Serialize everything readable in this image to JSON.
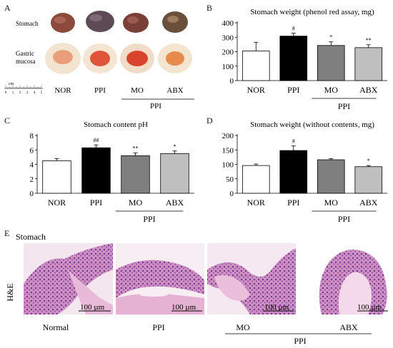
{
  "panel_letters": {
    "a": "A",
    "b": "B",
    "c": "C",
    "d": "D",
    "e": "E"
  },
  "panel_a": {
    "row_labels": [
      "Stomach",
      "Gastric\nmucosa"
    ],
    "ruler_unit": "cm",
    "ruler_ticks": [
      "0",
      "1",
      "2",
      "3",
      "4",
      "5"
    ],
    "group_labels": [
      "NOR",
      "PPI",
      "MO",
      "ABX"
    ],
    "ppi_bracket_label": "PPI"
  },
  "panel_e": {
    "title": "Stomach",
    "stain_label": "H&E",
    "scale_bar": "100 µm",
    "captions": [
      "Normal",
      "PPI",
      "MO",
      "ABX"
    ],
    "ppi_bracket_label": "PPI"
  },
  "colors": {
    "NOR": "#ffffff",
    "PPI": "#000000",
    "MO": "#7f7f7f",
    "ABX": "#bfbfbf",
    "he_pink": "#e7b5d6",
    "he_purple": "#8a4e9e"
  },
  "chart_data": [
    {
      "id": "B",
      "type": "bar",
      "title": "Stomach weight (phenol red assay, mg)",
      "categories": [
        "NOR",
        "PPI",
        "MO",
        "ABX"
      ],
      "values": [
        205,
        308,
        243,
        228
      ],
      "errors": [
        60,
        20,
        25,
        20
      ],
      "significance": [
        "",
        "#",
        "*",
        "**"
      ],
      "ylim": [
        0,
        400
      ],
      "yticks": [
        "0",
        "100",
        "200",
        "300",
        "400"
      ],
      "group_bracket": "PPI"
    },
    {
      "id": "C",
      "type": "bar",
      "title": "Stomach content pH",
      "categories": [
        "NOR",
        "PPI",
        "MO",
        "ABX"
      ],
      "values": [
        4.5,
        6.3,
        5.2,
        5.5
      ],
      "errors": [
        0.3,
        0.4,
        0.4,
        0.35
      ],
      "significance": [
        "",
        "##",
        "**",
        "*"
      ],
      "ylim": [
        0,
        8
      ],
      "yticks": [
        "0",
        "2",
        "4",
        "6",
        "8"
      ],
      "group_bracket": "PPI"
    },
    {
      "id": "D",
      "type": "bar",
      "title": "Stomach weight (without contents, mg)",
      "categories": [
        "NOR",
        "PPI",
        "MO",
        "ABX"
      ],
      "values": [
        96,
        148,
        116,
        92
      ],
      "errors": [
        5,
        16,
        4,
        4
      ],
      "significance": [
        "",
        "#",
        "",
        "*"
      ],
      "ylim": [
        0,
        200
      ],
      "yticks": [
        "0",
        "50",
        "100",
        "150",
        "200"
      ],
      "group_bracket": "PPI"
    }
  ]
}
